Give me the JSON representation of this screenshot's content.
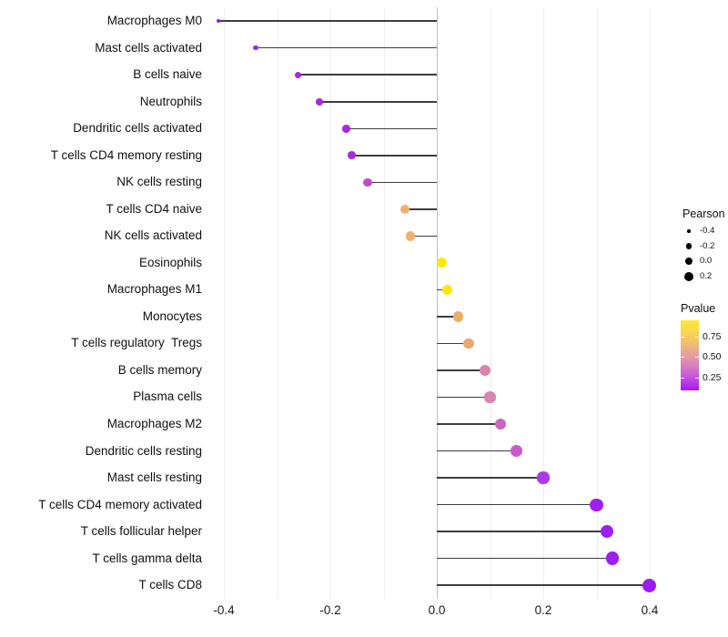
{
  "background": "#ffffff",
  "chart_data": {
    "type": "lollipop",
    "orientation": "horizontal",
    "title": "",
    "xlabel": "",
    "ylabel": "",
    "xlim": [
      -0.43,
      0.43
    ],
    "x_tick_labels": [
      "-0.4",
      "-0.2",
      "0.0",
      "0.2",
      "0.4"
    ],
    "x_tick_values": [
      -0.4,
      -0.2,
      0.0,
      0.2,
      0.4
    ],
    "grid": "vertical gridlines every 0.1, zero line darker",
    "size_encoding": "Pearson correlation (larger = higher value)",
    "color_encoding": "Pvalue (purple = low, yellow = high)",
    "points": [
      {
        "label": "Macrophages M0",
        "pearson": -0.41,
        "color": "#9327E0"
      },
      {
        "label": "Mast cells activated",
        "pearson": -0.34,
        "color": "#9B2BDE"
      },
      {
        "label": "B cells naive",
        "pearson": -0.26,
        "color": "#A428DC"
      },
      {
        "label": "Neutrophils",
        "pearson": -0.22,
        "color": "#A428DC"
      },
      {
        "label": "Dendritic cells activated",
        "pearson": -0.17,
        "color": "#A82BD8"
      },
      {
        "label": "T cells CD4 memory resting",
        "pearson": -0.16,
        "color": "#A82BD8"
      },
      {
        "label": "NK cells resting",
        "pearson": -0.13,
        "color": "#C24BC6"
      },
      {
        "label": "T cells CD4 naive",
        "pearson": -0.06,
        "color": "#EFB06E"
      },
      {
        "label": "NK cells activated",
        "pearson": -0.05,
        "color": "#EFB06C"
      },
      {
        "label": "Eosinophils",
        "pearson": 0.01,
        "color": "#F9EB06"
      },
      {
        "label": "Macrophages M1",
        "pearson": 0.02,
        "color": "#F8E80D"
      },
      {
        "label": "Monocytes",
        "pearson": 0.04,
        "color": "#EDAD62"
      },
      {
        "label": "T cells regulatory  Tregs",
        "pearson": 0.06,
        "color": "#EBA96E"
      },
      {
        "label": "B cells memory",
        "pearson": 0.09,
        "color": "#D983AE"
      },
      {
        "label": "Plasma cells",
        "pearson": 0.1,
        "color": "#D885B0"
      },
      {
        "label": "Macrophages M2",
        "pearson": 0.12,
        "color": "#CB66BE"
      },
      {
        "label": "Dendritic cells resting",
        "pearson": 0.15,
        "color": "#C75BCB"
      },
      {
        "label": "Mast cells resting",
        "pearson": 0.2,
        "color": "#AB3BE8"
      },
      {
        "label": "T cells CD4 memory activated",
        "pearson": 0.3,
        "color": "#9D20F0"
      },
      {
        "label": "T cells follicular helper",
        "pearson": 0.32,
        "color": "#9D20F0"
      },
      {
        "label": "T cells gamma delta",
        "pearson": 0.33,
        "color": "#9C1FF0"
      },
      {
        "label": "T cells CD8",
        "pearson": 0.4,
        "color": "#9B1CF2"
      }
    ],
    "legend_position": "right",
    "legends": {
      "pearson": {
        "title": "Pearson",
        "entries": [
          "-0.4",
          "-0.2",
          "0.0",
          "0.2"
        ],
        "dot_color": "#000000"
      },
      "pvalue": {
        "title": "Pvalue",
        "tick_labels": [
          "0.75",
          "0.50",
          "0.25"
        ],
        "gradient_top_to_bottom": [
          "#FBEC32",
          "#F3C36C",
          "#E195AB",
          "#C75ED8",
          "#A816FA"
        ]
      }
    }
  }
}
